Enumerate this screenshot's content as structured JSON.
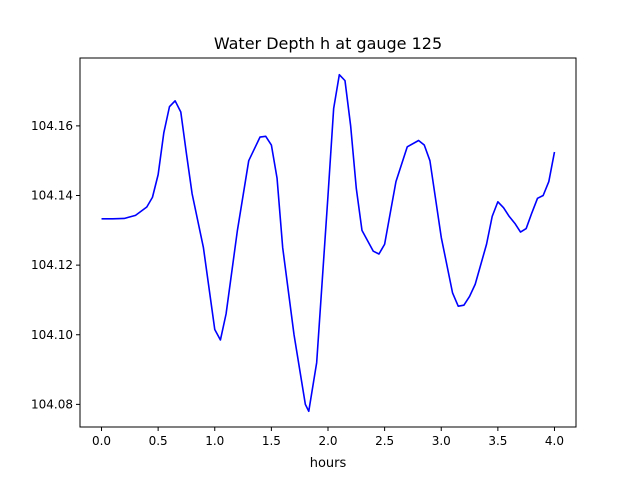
{
  "chart_data": {
    "type": "line",
    "title": "Water Depth h at gauge 125",
    "xlabel": "hours",
    "ylabel": "",
    "xlim": [
      -0.19,
      4.19
    ],
    "ylim": [
      104.0735,
      104.1795
    ],
    "xticks": [
      0.0,
      0.5,
      1.0,
      1.5,
      2.0,
      2.5,
      3.0,
      3.5,
      4.0
    ],
    "xtick_labels": [
      "0.0",
      "0.5",
      "1.0",
      "1.5",
      "2.0",
      "2.5",
      "3.0",
      "3.5",
      "4.0"
    ],
    "yticks": [
      104.08,
      104.1,
      104.12,
      104.14,
      104.16
    ],
    "ytick_labels": [
      "104.08",
      "104.10",
      "104.12",
      "104.14",
      "104.16"
    ],
    "grid": false,
    "legend": "none",
    "series": [
      {
        "color": "#0000ff",
        "x": [
          0.0,
          0.1,
          0.2,
          0.3,
          0.4,
          0.45,
          0.5,
          0.55,
          0.6,
          0.65,
          0.7,
          0.75,
          0.8,
          0.9,
          1.0,
          1.05,
          1.1,
          1.2,
          1.3,
          1.4,
          1.45,
          1.5,
          1.55,
          1.6,
          1.7,
          1.8,
          1.83,
          1.9,
          2.0,
          2.05,
          2.1,
          2.15,
          2.2,
          2.25,
          2.3,
          2.4,
          2.45,
          2.5,
          2.55,
          2.6,
          2.7,
          2.8,
          2.85,
          2.9,
          3.0,
          3.1,
          3.15,
          3.2,
          3.25,
          3.3,
          3.4,
          3.45,
          3.5,
          3.55,
          3.6,
          3.65,
          3.7,
          3.75,
          3.8,
          3.85,
          3.9,
          3.95,
          4.0
        ],
        "y": [
          104.1333,
          104.1333,
          104.1334,
          104.1343,
          104.1367,
          104.1395,
          104.146,
          104.158,
          104.1655,
          104.1672,
          104.164,
          104.152,
          104.1405,
          104.125,
          104.1015,
          104.0985,
          104.106,
          104.13,
          104.15,
          104.1568,
          104.157,
          104.1545,
          104.145,
          104.125,
          104.1,
          104.08,
          104.078,
          104.092,
          104.14,
          104.165,
          104.1747,
          104.173,
          104.16,
          104.142,
          104.13,
          104.124,
          104.1232,
          104.126,
          104.135,
          104.144,
          104.154,
          104.1558,
          104.1545,
          104.15,
          104.128,
          104.112,
          104.1082,
          104.1085,
          104.111,
          104.1145,
          104.126,
          104.134,
          104.1382,
          104.1365,
          104.134,
          104.132,
          104.1295,
          104.1305,
          104.135,
          104.1392,
          104.14,
          104.144,
          104.1525
        ]
      }
    ]
  }
}
